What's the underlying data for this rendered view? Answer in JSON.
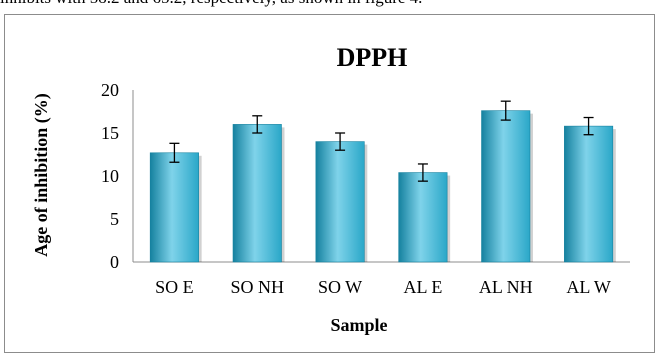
{
  "caption_text": "inhibits with 58.2 and 65.2, respectively, as shown in figure 4.",
  "chart_data": {
    "type": "bar",
    "title": "DPPH",
    "xlabel": "Sample",
    "ylabel": "Age of inhibition (%)",
    "categories": [
      "SO E",
      "SO NH",
      "SO W",
      "AL E",
      "AL NH",
      "AL W"
    ],
    "values": [
      12.7,
      16.0,
      14.0,
      10.4,
      17.6,
      15.8
    ],
    "errors": [
      1.1,
      1.0,
      1.0,
      1.0,
      1.1,
      1.0
    ],
    "ylim": [
      0,
      20
    ],
    "yticks": [
      "0",
      "5",
      "10",
      "15",
      "20"
    ],
    "grid": false,
    "legend": "none",
    "colors": {
      "bar": "#2aa7c8",
      "bar_light": "#7fd3ea",
      "bar_dark": "#15819f",
      "axis": "#8c8c8c"
    }
  }
}
